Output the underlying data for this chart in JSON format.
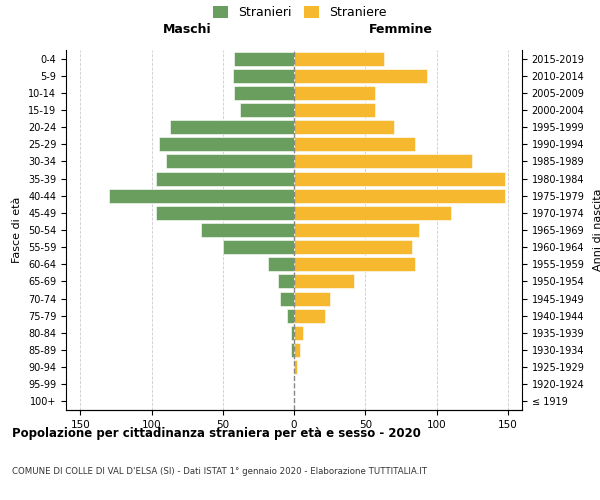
{
  "age_groups": [
    "100+",
    "95-99",
    "90-94",
    "85-89",
    "80-84",
    "75-79",
    "70-74",
    "65-69",
    "60-64",
    "55-59",
    "50-54",
    "45-49",
    "40-44",
    "35-39",
    "30-34",
    "25-29",
    "20-24",
    "15-19",
    "10-14",
    "5-9",
    "0-4"
  ],
  "birth_years": [
    "≤ 1919",
    "1920-1924",
    "1925-1929",
    "1930-1934",
    "1935-1939",
    "1940-1944",
    "1945-1949",
    "1950-1954",
    "1955-1959",
    "1960-1964",
    "1965-1969",
    "1970-1974",
    "1975-1979",
    "1980-1984",
    "1985-1989",
    "1990-1994",
    "1995-1999",
    "2000-2004",
    "2005-2009",
    "2010-2014",
    "2015-2019"
  ],
  "maschi": [
    0,
    0,
    0,
    2,
    2,
    5,
    10,
    11,
    18,
    50,
    65,
    97,
    130,
    97,
    90,
    95,
    87,
    38,
    42,
    43,
    42
  ],
  "femmine": [
    0,
    0,
    2,
    4,
    6,
    22,
    25,
    42,
    85,
    83,
    88,
    110,
    148,
    148,
    125,
    85,
    70,
    57,
    57,
    93,
    63
  ],
  "color_maschi": "#6a9e5e",
  "color_femmine": "#f5b82e",
  "color_dashed_line": "#888888",
  "title_main": "Popolazione per cittadinanza straniera per età e sesso - 2020",
  "title_sub": "COMUNE DI COLLE DI VAL D'ELSA (SI) - Dati ISTAT 1° gennaio 2020 - Elaborazione TUTTITALIA.IT",
  "xlabel_left": "Maschi",
  "xlabel_right": "Femmine",
  "ylabel_left": "Fasce di età",
  "ylabel_right": "Anni di nascita",
  "legend_maschi": "Stranieri",
  "legend_femmine": "Straniere",
  "xlim": 160,
  "bg_color": "#ffffff",
  "grid_color": "#cccccc"
}
